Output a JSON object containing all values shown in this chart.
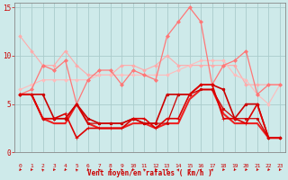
{
  "x": [
    0,
    1,
    2,
    3,
    4,
    5,
    6,
    7,
    8,
    9,
    10,
    11,
    12,
    13,
    14,
    15,
    16,
    17,
    18,
    19,
    20,
    21,
    22,
    23
  ],
  "series": [
    {
      "y": [
        12.0,
        10.5,
        9.0,
        9.0,
        10.5,
        9.0,
        8.0,
        8.0,
        8.0,
        9.0,
        9.0,
        8.5,
        9.0,
        10.0,
        9.0,
        9.0,
        9.0,
        9.0,
        9.0,
        9.0,
        7.0,
        7.0,
        7.0,
        7.0
      ],
      "color": "#ffaaaa",
      "lw": 0.8,
      "marker": "D",
      "ms": 1.8,
      "zorder": 2
    },
    {
      "y": [
        6.5,
        7.0,
        7.5,
        7.5,
        7.5,
        7.5,
        7.5,
        8.0,
        8.0,
        8.0,
        8.0,
        8.0,
        8.0,
        8.0,
        8.5,
        9.0,
        9.5,
        9.5,
        9.5,
        8.0,
        7.5,
        6.0,
        5.0,
        7.0
      ],
      "color": "#ffbbbb",
      "lw": 0.8,
      "marker": "D",
      "ms": 1.8,
      "zorder": 2
    },
    {
      "y": [
        6.0,
        6.5,
        9.0,
        8.5,
        9.5,
        5.0,
        7.5,
        8.5,
        8.5,
        7.0,
        8.5,
        8.0,
        7.5,
        12.0,
        13.5,
        15.0,
        13.5,
        7.0,
        9.0,
        9.5,
        10.5,
        6.0,
        7.0,
        7.0
      ],
      "color": "#ff7777",
      "lw": 0.9,
      "marker": "D",
      "ms": 2.0,
      "zorder": 3
    },
    {
      "y": [
        6.0,
        6.0,
        3.5,
        3.5,
        3.5,
        5.0,
        3.0,
        3.0,
        3.0,
        3.0,
        3.5,
        3.0,
        3.0,
        3.0,
        6.0,
        6.0,
        6.5,
        6.5,
        4.5,
        3.5,
        3.5,
        3.5,
        1.5,
        1.5
      ],
      "color": "#cc0000",
      "lw": 0.9,
      "marker": "o",
      "ms": 1.8,
      "zorder": 4
    },
    {
      "y": [
        6.0,
        6.0,
        6.0,
        3.5,
        3.5,
        5.0,
        3.5,
        3.0,
        3.0,
        3.0,
        3.5,
        3.0,
        3.0,
        6.0,
        6.0,
        6.0,
        7.0,
        7.0,
        6.5,
        3.5,
        5.0,
        5.0,
        1.5,
        1.5
      ],
      "color": "#cc0000",
      "lw": 1.2,
      "marker": "o",
      "ms": 2.0,
      "zorder": 5
    },
    {
      "y": [
        6.0,
        6.0,
        3.5,
        3.5,
        4.0,
        1.5,
        2.5,
        2.5,
        2.5,
        2.5,
        3.5,
        3.5,
        2.5,
        3.5,
        3.5,
        6.0,
        7.0,
        7.0,
        3.5,
        3.5,
        3.0,
        5.0,
        1.5,
        1.5
      ],
      "color": "#dd0000",
      "lw": 1.2,
      "marker": "+",
      "ms": 3.0,
      "zorder": 5
    },
    {
      "y": [
        6.0,
        6.0,
        3.5,
        3.0,
        3.0,
        5.0,
        3.0,
        2.5,
        2.5,
        2.5,
        3.0,
        3.0,
        2.5,
        3.0,
        3.0,
        5.5,
        6.5,
        6.5,
        4.0,
        3.0,
        3.0,
        3.0,
        1.5,
        1.5
      ],
      "color": "#ee2222",
      "lw": 1.5,
      "marker": "None",
      "ms": 0,
      "zorder": 3
    }
  ],
  "xlabel": "Vent moyen/en rafales ( km/h )",
  "xlim": [
    -0.5,
    23.5
  ],
  "ylim": [
    0,
    15.5
  ],
  "yticks": [
    0,
    5,
    10,
    15
  ],
  "xticks": [
    0,
    1,
    2,
    3,
    4,
    5,
    6,
    7,
    8,
    9,
    10,
    11,
    12,
    13,
    14,
    15,
    16,
    17,
    18,
    19,
    20,
    21,
    22,
    23
  ],
  "bg_color": "#ceeaea",
  "grid_color": "#aacccc",
  "label_color": "#cc0000",
  "spine_color": "#888888",
  "wind_angles_deg": [
    225,
    225,
    315,
    225,
    225,
    315,
    225,
    315,
    225,
    315,
    225,
    315,
    225,
    45,
    45,
    45,
    45,
    45,
    225,
    225,
    225,
    225,
    225,
    225
  ]
}
